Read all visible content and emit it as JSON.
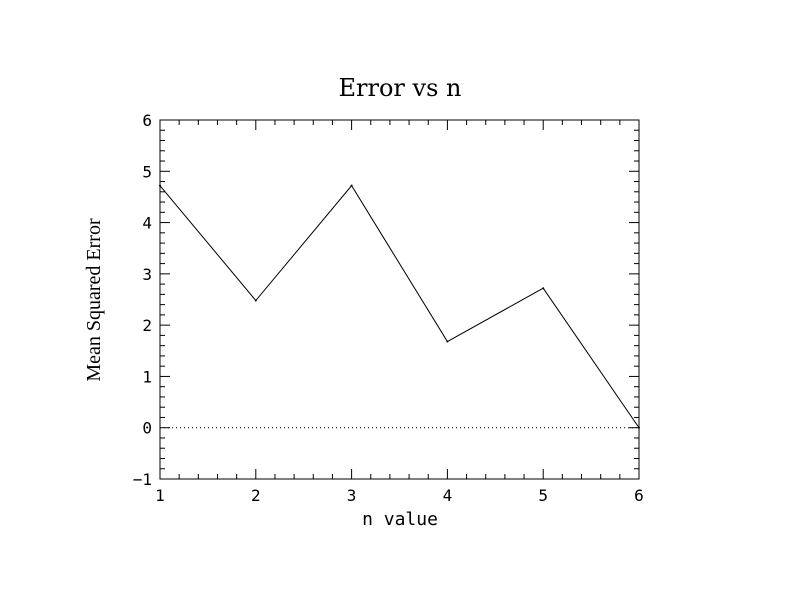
{
  "chart_data": {
    "type": "line",
    "title": "Error vs n",
    "xlabel": "n value",
    "ylabel": "Mean Squared Error",
    "xlim": [
      1,
      6
    ],
    "ylim": [
      -1,
      6
    ],
    "x_ticks": [
      1,
      2,
      3,
      4,
      5,
      6
    ],
    "y_ticks": [
      -1,
      0,
      1,
      2,
      3,
      4,
      5,
      6
    ],
    "x_tick_labels": [
      "1",
      "2",
      "3",
      "4",
      "5",
      "6"
    ],
    "y_tick_labels": [
      "−1",
      "0",
      "1",
      "2",
      "3",
      "4",
      "5",
      "6"
    ],
    "grid": false,
    "reference_line": {
      "y": 0,
      "style": "dotted"
    },
    "series": [
      {
        "x": [
          1,
          2,
          3,
          4,
          5,
          6
        ],
        "values": [
          4.72,
          2.48,
          4.72,
          1.68,
          2.72,
          0
        ]
      }
    ]
  }
}
